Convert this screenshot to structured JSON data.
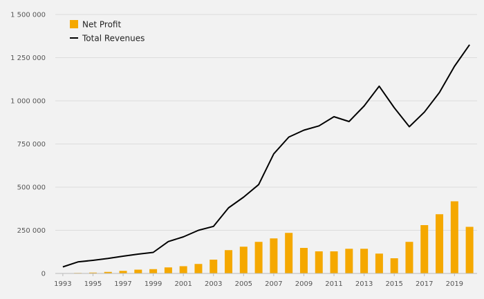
{
  "chart_data": {
    "type": "bar",
    "categories": [
      "1993",
      "1994",
      "1995",
      "1996",
      "1997",
      "1998",
      "1999",
      "2000",
      "2001",
      "2002",
      "2003",
      "2004",
      "2005",
      "2006",
      "2007",
      "2008",
      "2009",
      "2010",
      "2011",
      "2012",
      "2013",
      "2014",
      "2015",
      "2016",
      "2017",
      "2018",
      "2019",
      "2020"
    ],
    "x_tick_labels": [
      "1993",
      "1995",
      "1997",
      "1999",
      "2001",
      "2003",
      "2005",
      "2007",
      "2009",
      "2011",
      "2013",
      "2015",
      "2017",
      "2019"
    ],
    "y_tick_labels": [
      "0",
      "250 000",
      "500 000",
      "750 000",
      "1 000 000",
      "1 250 000",
      "1 500 000"
    ],
    "ylim": [
      0,
      1500000
    ],
    "grid": true,
    "legend_position": "top-left",
    "title": "",
    "xlabel": "",
    "ylabel": "",
    "series": [
      {
        "name": "Net Profit",
        "type": "bar",
        "color": "#f5a800",
        "values": [
          0,
          3000,
          5000,
          9000,
          15000,
          22000,
          25000,
          35000,
          42000,
          55000,
          80000,
          135000,
          155000,
          183000,
          203000,
          235000,
          148000,
          128000,
          128000,
          143000,
          143000,
          115000,
          88000,
          183000,
          280000,
          343000,
          418000,
          270000
        ]
      },
      {
        "name": "Total Revenues",
        "type": "line",
        "color": "#000000",
        "values": [
          38000,
          67000,
          76000,
          87000,
          100000,
          112000,
          122000,
          185000,
          212000,
          250000,
          273000,
          380000,
          442000,
          515000,
          693000,
          790000,
          830000,
          855000,
          908000,
          880000,
          970000,
          1085000,
          960000,
          850000,
          935000,
          1048000,
          1200000,
          1325000
        ]
      }
    ]
  }
}
